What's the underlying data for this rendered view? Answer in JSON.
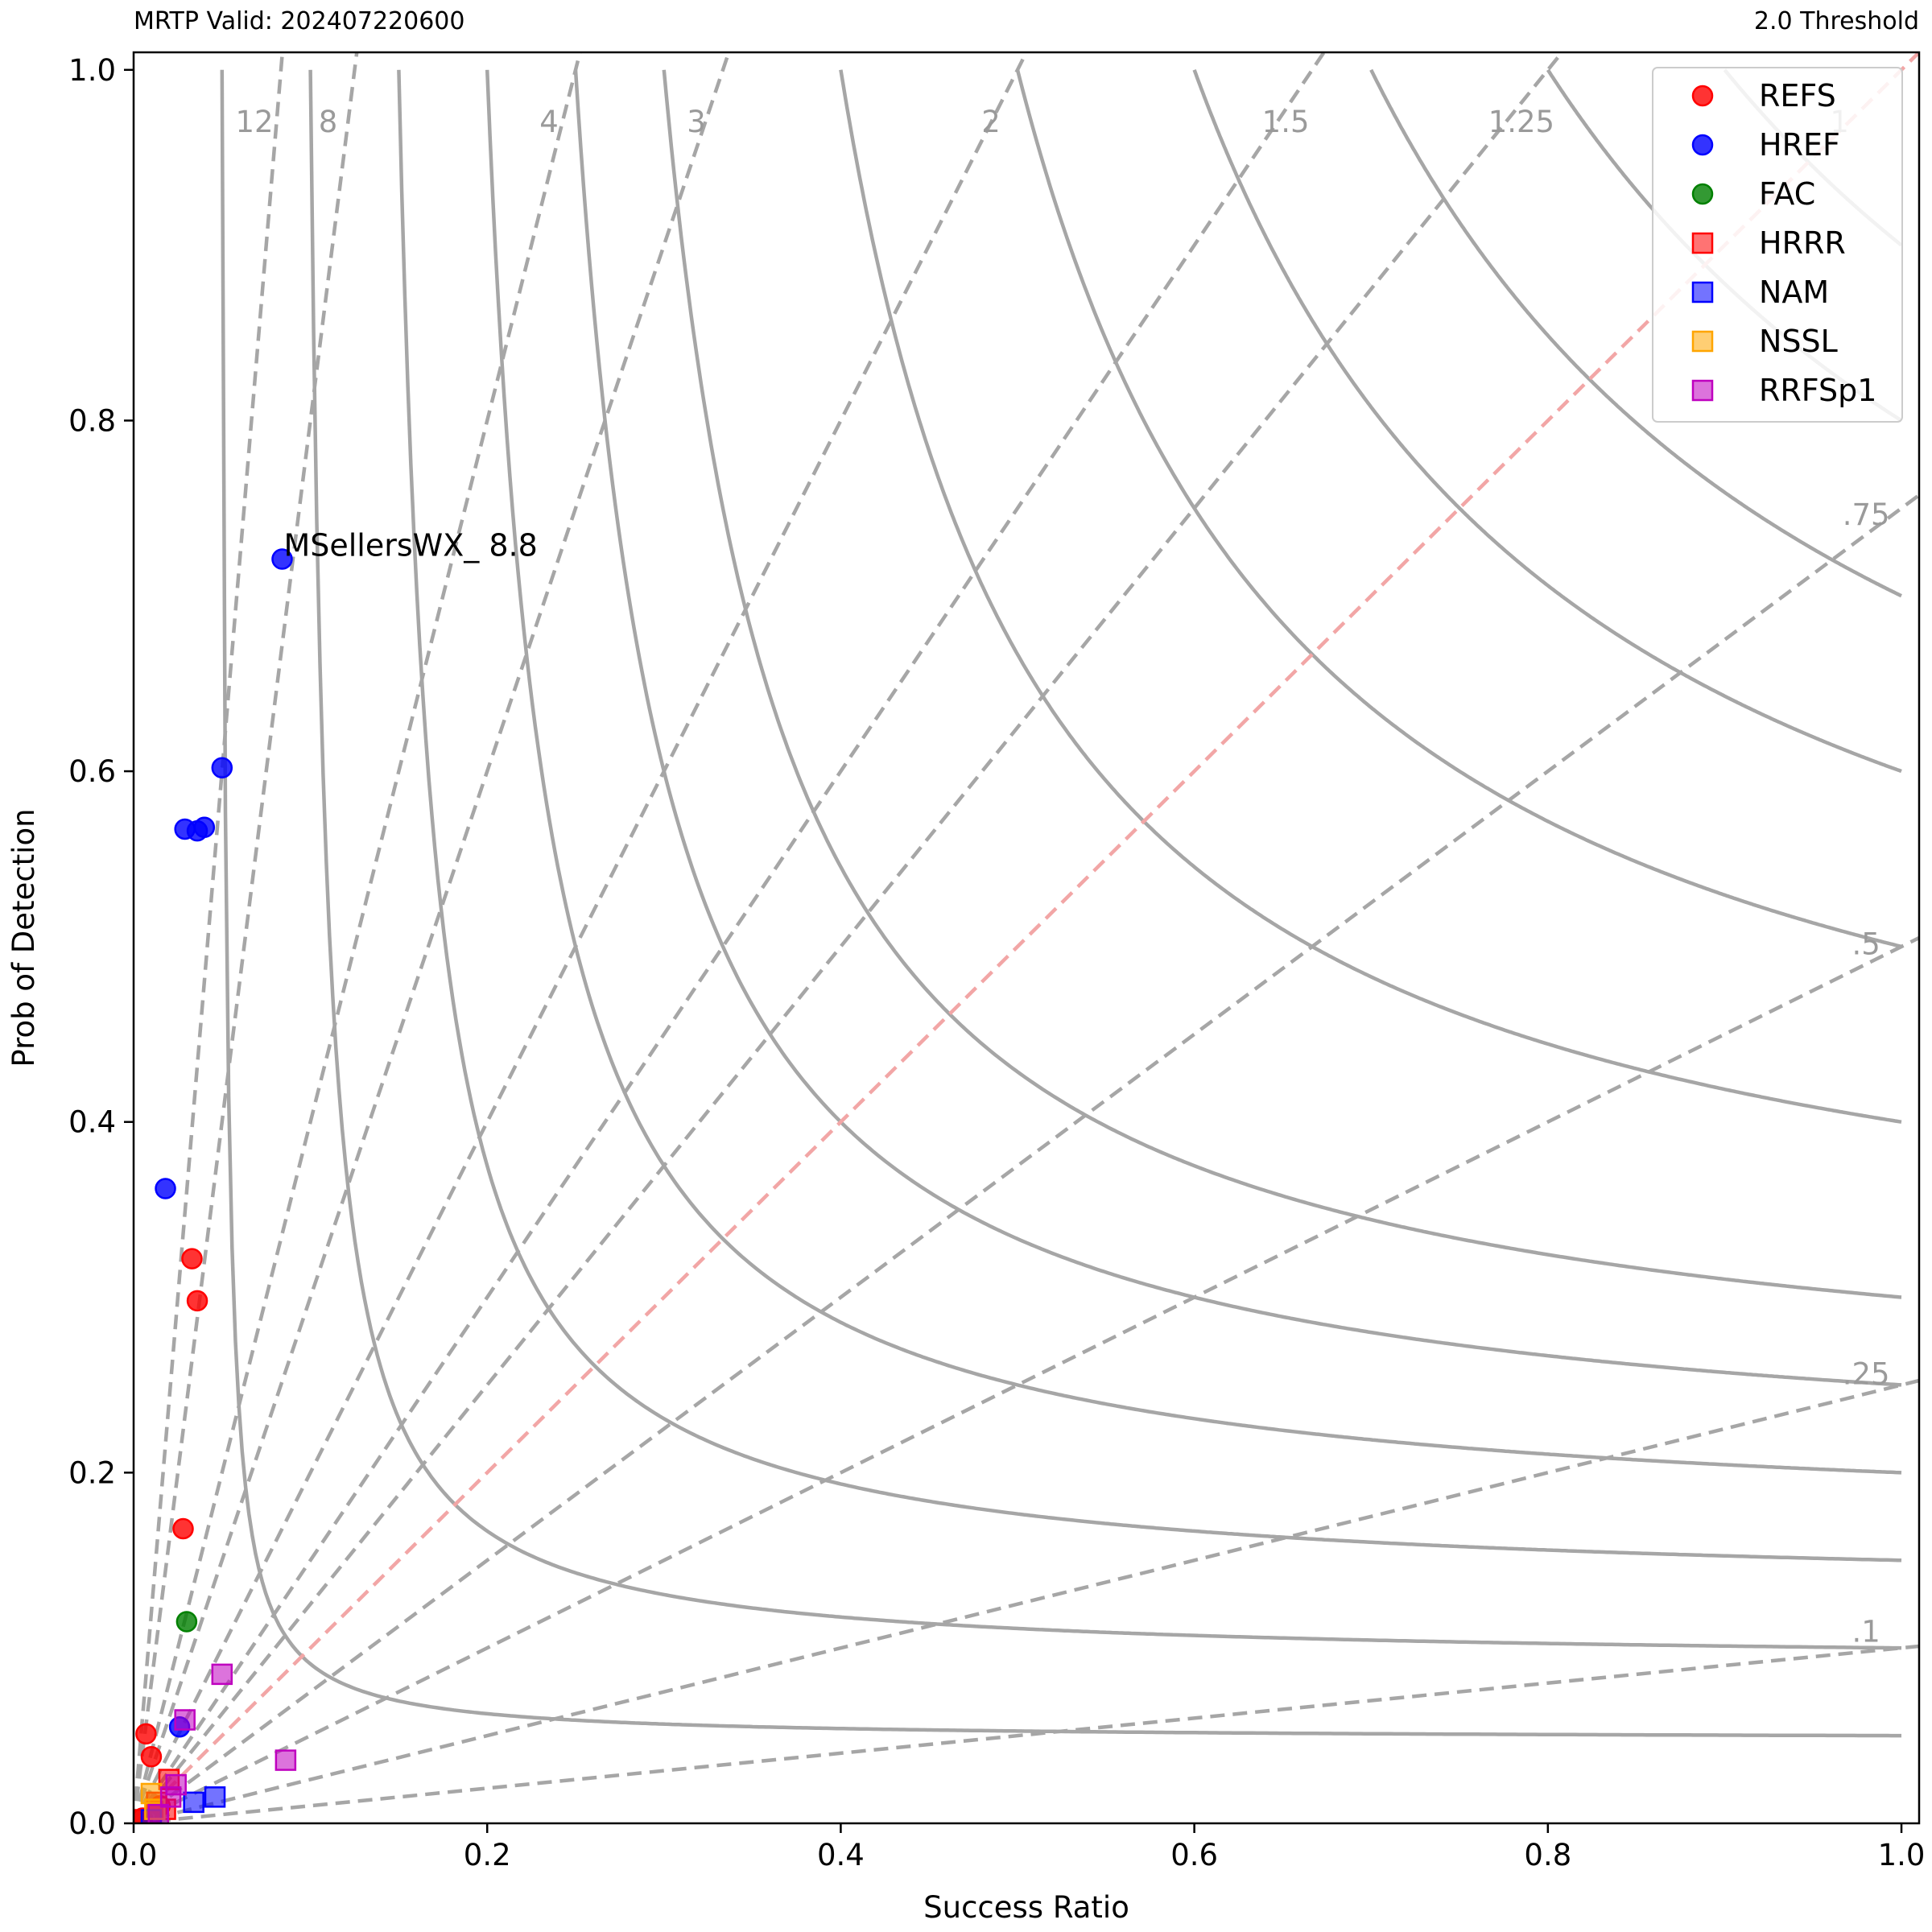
{
  "header": {
    "left_title": "MRTP Valid: 202407220600",
    "right_title": "2.0 Threshold"
  },
  "chart_data": {
    "type": "scatter",
    "title": "",
    "xlabel": "Success Ratio",
    "ylabel": "Prob of Detection",
    "xlim": [
      0,
      1.01
    ],
    "ylim": [
      0,
      1.01
    ],
    "x_ticks": [
      "0.0",
      "0.2",
      "0.4",
      "0.6",
      "0.8",
      "1.0"
    ],
    "y_ticks": [
      "0.0",
      "0.2",
      "0.4",
      "0.6",
      "0.8",
      "1.0"
    ],
    "grid": false,
    "legend_position": "top-right",
    "bias_lines": [
      {
        "value": 12,
        "label": "12"
      },
      {
        "value": 8,
        "label": "8"
      },
      {
        "value": 4,
        "label": "4"
      },
      {
        "value": 3,
        "label": "3"
      },
      {
        "value": 2,
        "label": "2"
      },
      {
        "value": 1.5,
        "label": "1.5"
      },
      {
        "value": 1.25,
        "label": "1.25"
      },
      {
        "value": 1,
        "label": "1"
      },
      {
        "value": 0.75,
        "label": ".75"
      },
      {
        "value": 0.5,
        "label": ".5"
      },
      {
        "value": 0.25,
        "label": ".25"
      },
      {
        "value": 0.1,
        "label": ".1"
      }
    ],
    "csi_levels": [
      0.05,
      0.1,
      0.15,
      0.2,
      0.25,
      0.3,
      0.4,
      0.5,
      0.6,
      0.7,
      0.8,
      0.9
    ],
    "colors": {
      "isoline": "#a6a6a6",
      "bias_one": "#f2a6a6",
      "bias_label": "#9a9a9a",
      "REFS": "#ff0000",
      "HREF": "#0000ff",
      "FAC": "#008000",
      "HRRR": "#ff0000",
      "NAM": "#0000ff",
      "NSSL": "#ffa500",
      "RRFSp1": "#bf00bf"
    },
    "series": [
      {
        "name": "REFS",
        "marker": "circle",
        "points": [
          [
            0.007,
            0.051
          ],
          [
            0.01,
            0.038
          ],
          [
            0.028,
            0.168
          ],
          [
            0.033,
            0.322
          ],
          [
            0.036,
            0.298
          ],
          [
            0.015,
            0.01
          ],
          [
            0.005,
            0.003
          ],
          [
            0.012,
            0.006
          ]
        ]
      },
      {
        "name": "HREF",
        "marker": "circle",
        "points": [
          [
            0.084,
            0.721
          ],
          [
            0.05,
            0.602
          ],
          [
            0.029,
            0.567
          ],
          [
            0.036,
            0.566
          ],
          [
            0.04,
            0.568
          ],
          [
            0.018,
            0.362
          ],
          [
            0.026,
            0.055
          ]
        ]
      },
      {
        "name": "FAC",
        "marker": "circle",
        "points": [
          [
            0.03,
            0.115
          ]
        ]
      },
      {
        "name": "HRRR",
        "marker": "square",
        "points": [
          [
            0.02,
            0.025
          ],
          [
            0.013,
            0.012
          ],
          [
            0.018,
            0.008
          ],
          [
            0.004,
            0.002
          ]
        ]
      },
      {
        "name": "NAM",
        "marker": "square",
        "points": [
          [
            0.046,
            0.015
          ],
          [
            0.034,
            0.012
          ],
          [
            0.01,
            0.002
          ]
        ]
      },
      {
        "name": "NSSL",
        "marker": "square",
        "points": [
          [
            0.01,
            0.017
          ],
          [
            0.012,
            0.008
          ]
        ]
      },
      {
        "name": "RRFSp1",
        "marker": "square",
        "points": [
          [
            0.05,
            0.085
          ],
          [
            0.029,
            0.059
          ],
          [
            0.086,
            0.036
          ],
          [
            0.024,
            0.022
          ],
          [
            0.021,
            0.015
          ],
          [
            0.014,
            0.005
          ]
        ]
      }
    ],
    "annotations": [
      {
        "text": "MSellersWX_ 8.8",
        "x": 0.084,
        "y": 0.721
      }
    ]
  }
}
